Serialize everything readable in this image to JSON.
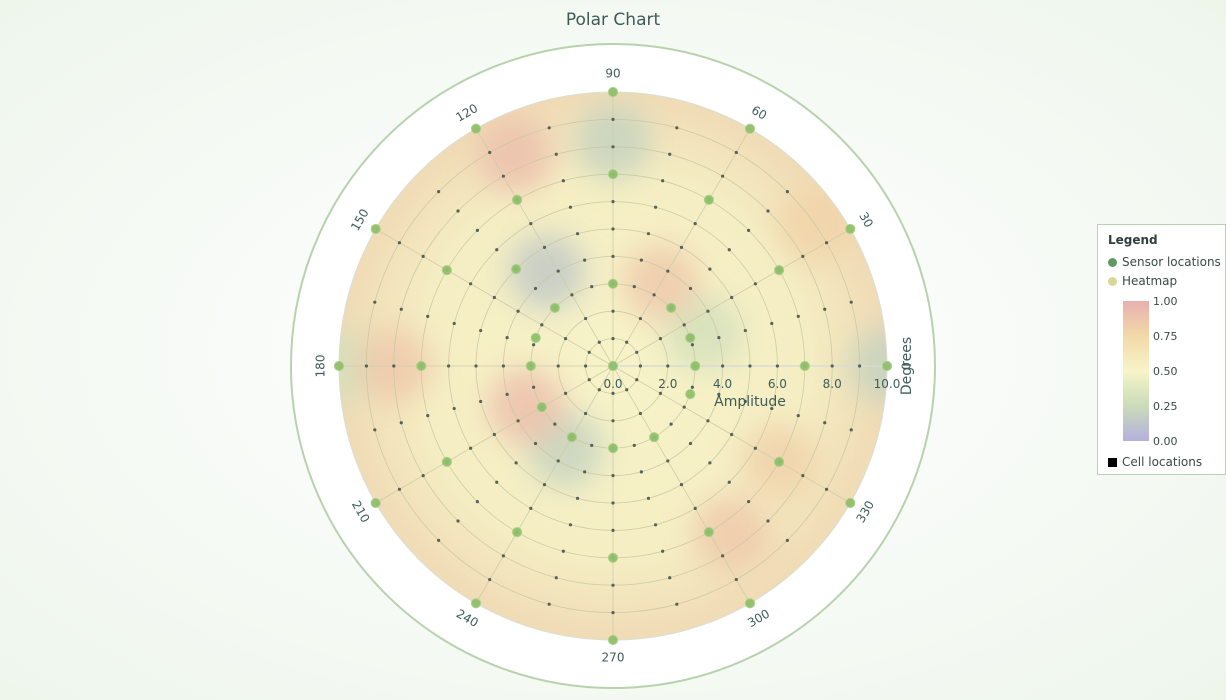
{
  "chart_data": {
    "type": "heatmap",
    "title": "Polar Chart",
    "radial_axis": {
      "label": "Amplitude",
      "range": [
        0,
        10
      ],
      "tick_labels": [
        "0.0",
        "2.0",
        "4.0",
        "6.0",
        "8.0",
        "10.0"
      ]
    },
    "angular_axis": {
      "label": "Degrees",
      "tick_labels": [
        "90",
        "60",
        "30",
        "0",
        "330",
        "300",
        "270",
        "240",
        "210",
        "180",
        "150",
        "120"
      ]
    },
    "legend": {
      "title": "Legend",
      "entries": [
        "Sensor locations",
        "Heatmap",
        "Cell locations"
      ],
      "colorbar_ticks": [
        "1.00",
        "0.75",
        "0.50",
        "0.25",
        "0.00"
      ],
      "colorbar_range": [
        0,
        1
      ],
      "placement": "right"
    },
    "sensor_locations": [
      {
        "r": 0,
        "theta": 0
      },
      {
        "r": 3,
        "theta": 90
      },
      {
        "r": 7,
        "theta": 90
      },
      {
        "r": 10,
        "theta": 90
      },
      {
        "r": 3,
        "theta": 45
      },
      {
        "r": 7,
        "theta": 60
      },
      {
        "r": 10,
        "theta": 60
      },
      {
        "r": 3,
        "theta": 20
      },
      {
        "r": 7,
        "theta": 30
      },
      {
        "r": 10,
        "theta": 30
      },
      {
        "r": 3,
        "theta": 0
      },
      {
        "r": 7,
        "theta": 0
      },
      {
        "r": 10,
        "theta": 0
      },
      {
        "r": 3,
        "theta": 340
      },
      {
        "r": 7,
        "theta": 330
      },
      {
        "r": 10,
        "theta": 330
      },
      {
        "r": 3,
        "theta": 300
      },
      {
        "r": 7,
        "theta": 300
      },
      {
        "r": 10,
        "theta": 300
      },
      {
        "r": 3,
        "theta": 270
      },
      {
        "r": 7,
        "theta": 270
      },
      {
        "r": 10,
        "theta": 270
      },
      {
        "r": 3,
        "theta": 240
      },
      {
        "r": 7,
        "theta": 240
      },
      {
        "r": 10,
        "theta": 240
      },
      {
        "r": 3,
        "theta": 210
      },
      {
        "r": 7,
        "theta": 210
      },
      {
        "r": 10,
        "theta": 210
      },
      {
        "r": 3,
        "theta": 180
      },
      {
        "r": 7,
        "theta": 180
      },
      {
        "r": 10,
        "theta": 180
      },
      {
        "r": 3,
        "theta": 160
      },
      {
        "r": 7,
        "theta": 150
      },
      {
        "r": 10,
        "theta": 150
      },
      {
        "r": 3,
        "theta": 135
      },
      {
        "r": 5,
        "theta": 135
      },
      {
        "r": 7,
        "theta": 120
      },
      {
        "r": 10,
        "theta": 120
      }
    ],
    "heat_spots": [
      {
        "r": 8.2,
        "theta": 90,
        "value": 0.2
      },
      {
        "r": 4.2,
        "theta": 125,
        "value": 0.15
      },
      {
        "r": 3.5,
        "theta": 240,
        "value": 0.2
      },
      {
        "r": 3.5,
        "theta": 20,
        "value": 0.3
      },
      {
        "r": 10,
        "theta": 0,
        "value": 0.2
      },
      {
        "r": 10,
        "theta": 180,
        "value": 0.3
      },
      {
        "r": 8.5,
        "theta": 115,
        "value": 0.9
      },
      {
        "r": 8,
        "theta": 180,
        "value": 0.85
      },
      {
        "r": 7.5,
        "theta": 305,
        "value": 0.85
      },
      {
        "r": 7,
        "theta": 330,
        "value": 0.8
      },
      {
        "r": 3.5,
        "theta": 205,
        "value": 0.9
      },
      {
        "r": 3.5,
        "theta": 60,
        "value": 0.85
      },
      {
        "r": 9,
        "theta": 35,
        "value": 0.78
      }
    ]
  }
}
